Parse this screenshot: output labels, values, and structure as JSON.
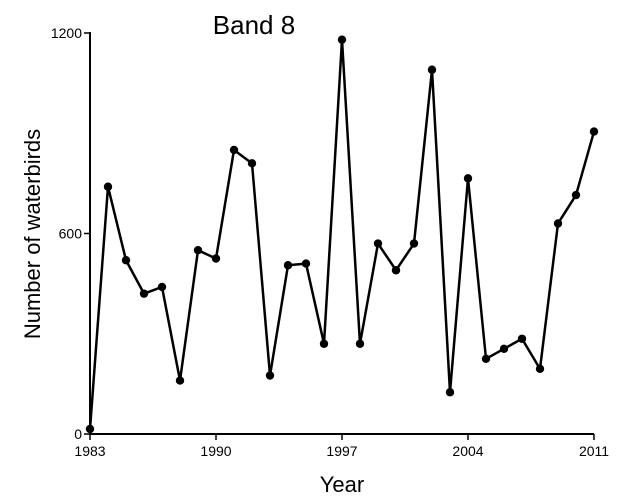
{
  "chart_data": {
    "type": "line",
    "title": "Band 8",
    "xlabel": "Year",
    "ylabel": "Number of waterbirds",
    "xlim": [
      1983,
      2011
    ],
    "ylim": [
      0,
      1200
    ],
    "xticks": [
      1983,
      1990,
      1997,
      2004,
      2011
    ],
    "yticks": [
      0,
      600,
      1200
    ],
    "grid": false,
    "legend": "none",
    "series": [
      {
        "x": [
          1983,
          1984,
          1985,
          1986,
          1987,
          1988,
          1989,
          1990,
          1991,
          1992,
          1993,
          1994,
          1995,
          1996,
          1997,
          1998,
          1999,
          2000,
          2001,
          2002,
          2003,
          2004,
          2005,
          2006,
          2007,
          2008,
          2009,
          2010,
          2011
        ],
        "y": [
          15,
          740,
          520,
          420,
          440,
          160,
          550,
          525,
          850,
          810,
          175,
          505,
          510,
          270,
          1180,
          270,
          570,
          490,
          570,
          1090,
          125,
          765,
          225,
          255,
          285,
          195,
          630,
          715,
          905
        ]
      }
    ],
    "colors": {
      "line": "#000000",
      "point": "#000000",
      "axis": "#000000"
    }
  }
}
